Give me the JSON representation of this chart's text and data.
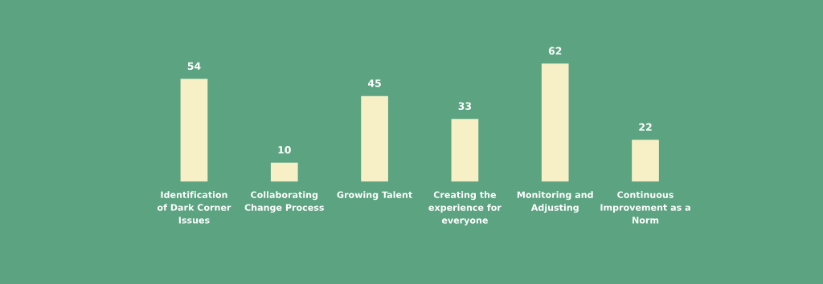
{
  "chart_data": {
    "type": "bar",
    "categories": [
      "Identification of Dark Corner Issues",
      "Collaborating Change Process",
      "Growing Talent",
      "Creating the experience for everyone",
      "Monitoring and Adjusting",
      "Continuous Improvement as a Norm"
    ],
    "values": [
      54,
      10,
      45,
      33,
      62,
      22
    ],
    "color": "#f7f0c6",
    "data_labels": true
  }
}
